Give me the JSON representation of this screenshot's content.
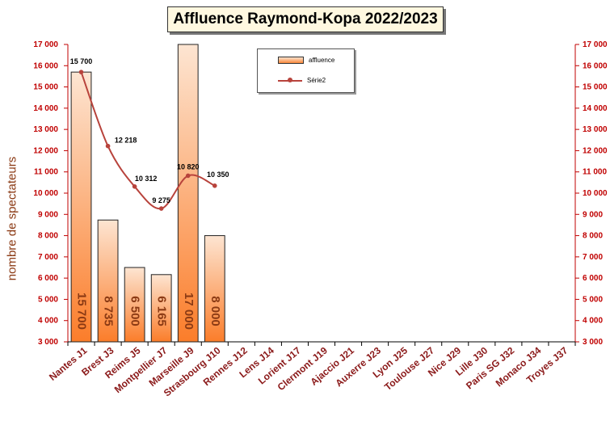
{
  "chart_data": {
    "type": "bar",
    "title": "Affluence Raymond-Kopa 2022/2023",
    "ylabel": "nombre de spectateurs",
    "ylim": [
      3000,
      17000
    ],
    "yticks": [
      "3 000",
      "4 000",
      "5 000",
      "6 000",
      "7 000",
      "8 000",
      "9 000",
      "10 000",
      "11 000",
      "12 000",
      "13 000",
      "14 000",
      "15 000",
      "16 000",
      "17 000"
    ],
    "categories": [
      "Nantes J1",
      "Brest J3",
      "Reims J5",
      "Montpellier J7",
      "Marseille J9",
      "Strasbourg J10",
      "Rennes J12",
      "Lens J14",
      "Lorient J17",
      "Clermont J19",
      "Ajaccio J21",
      "Auxerre J23",
      "Lyon J25",
      "Toulouse J27",
      "Nice J29",
      "Lille J30",
      "Paris SG J32",
      "Monaco J34",
      "Troyes J37"
    ],
    "series": [
      {
        "name": "affluence",
        "kind": "bar",
        "values": [
          15700,
          8735,
          6500,
          6165,
          17000,
          8000,
          null,
          null,
          null,
          null,
          null,
          null,
          null,
          null,
          null,
          null,
          null,
          null,
          null
        ],
        "labels": [
          "15 700",
          "8 735",
          "6 500",
          "6 165",
          "17 000",
          "8 000"
        ]
      },
      {
        "name": "Série2",
        "kind": "line",
        "values": [
          15700,
          12218,
          10312,
          9275,
          10820,
          10350,
          null,
          null,
          null,
          null,
          null,
          null,
          null,
          null,
          null,
          null,
          null,
          null,
          null
        ],
        "labels": [
          "15 700",
          "12 218",
          "10 312",
          "9 275",
          "10 820",
          "10 350"
        ]
      }
    ],
    "legend_position": "top",
    "colors": {
      "axis": "#c00000",
      "bar_top": "#fde5d2",
      "bar_bottom": "#fb7d2a",
      "bar_label": "#8b3a14",
      "line": "#b8433c",
      "category": "#8b1a1a"
    }
  }
}
